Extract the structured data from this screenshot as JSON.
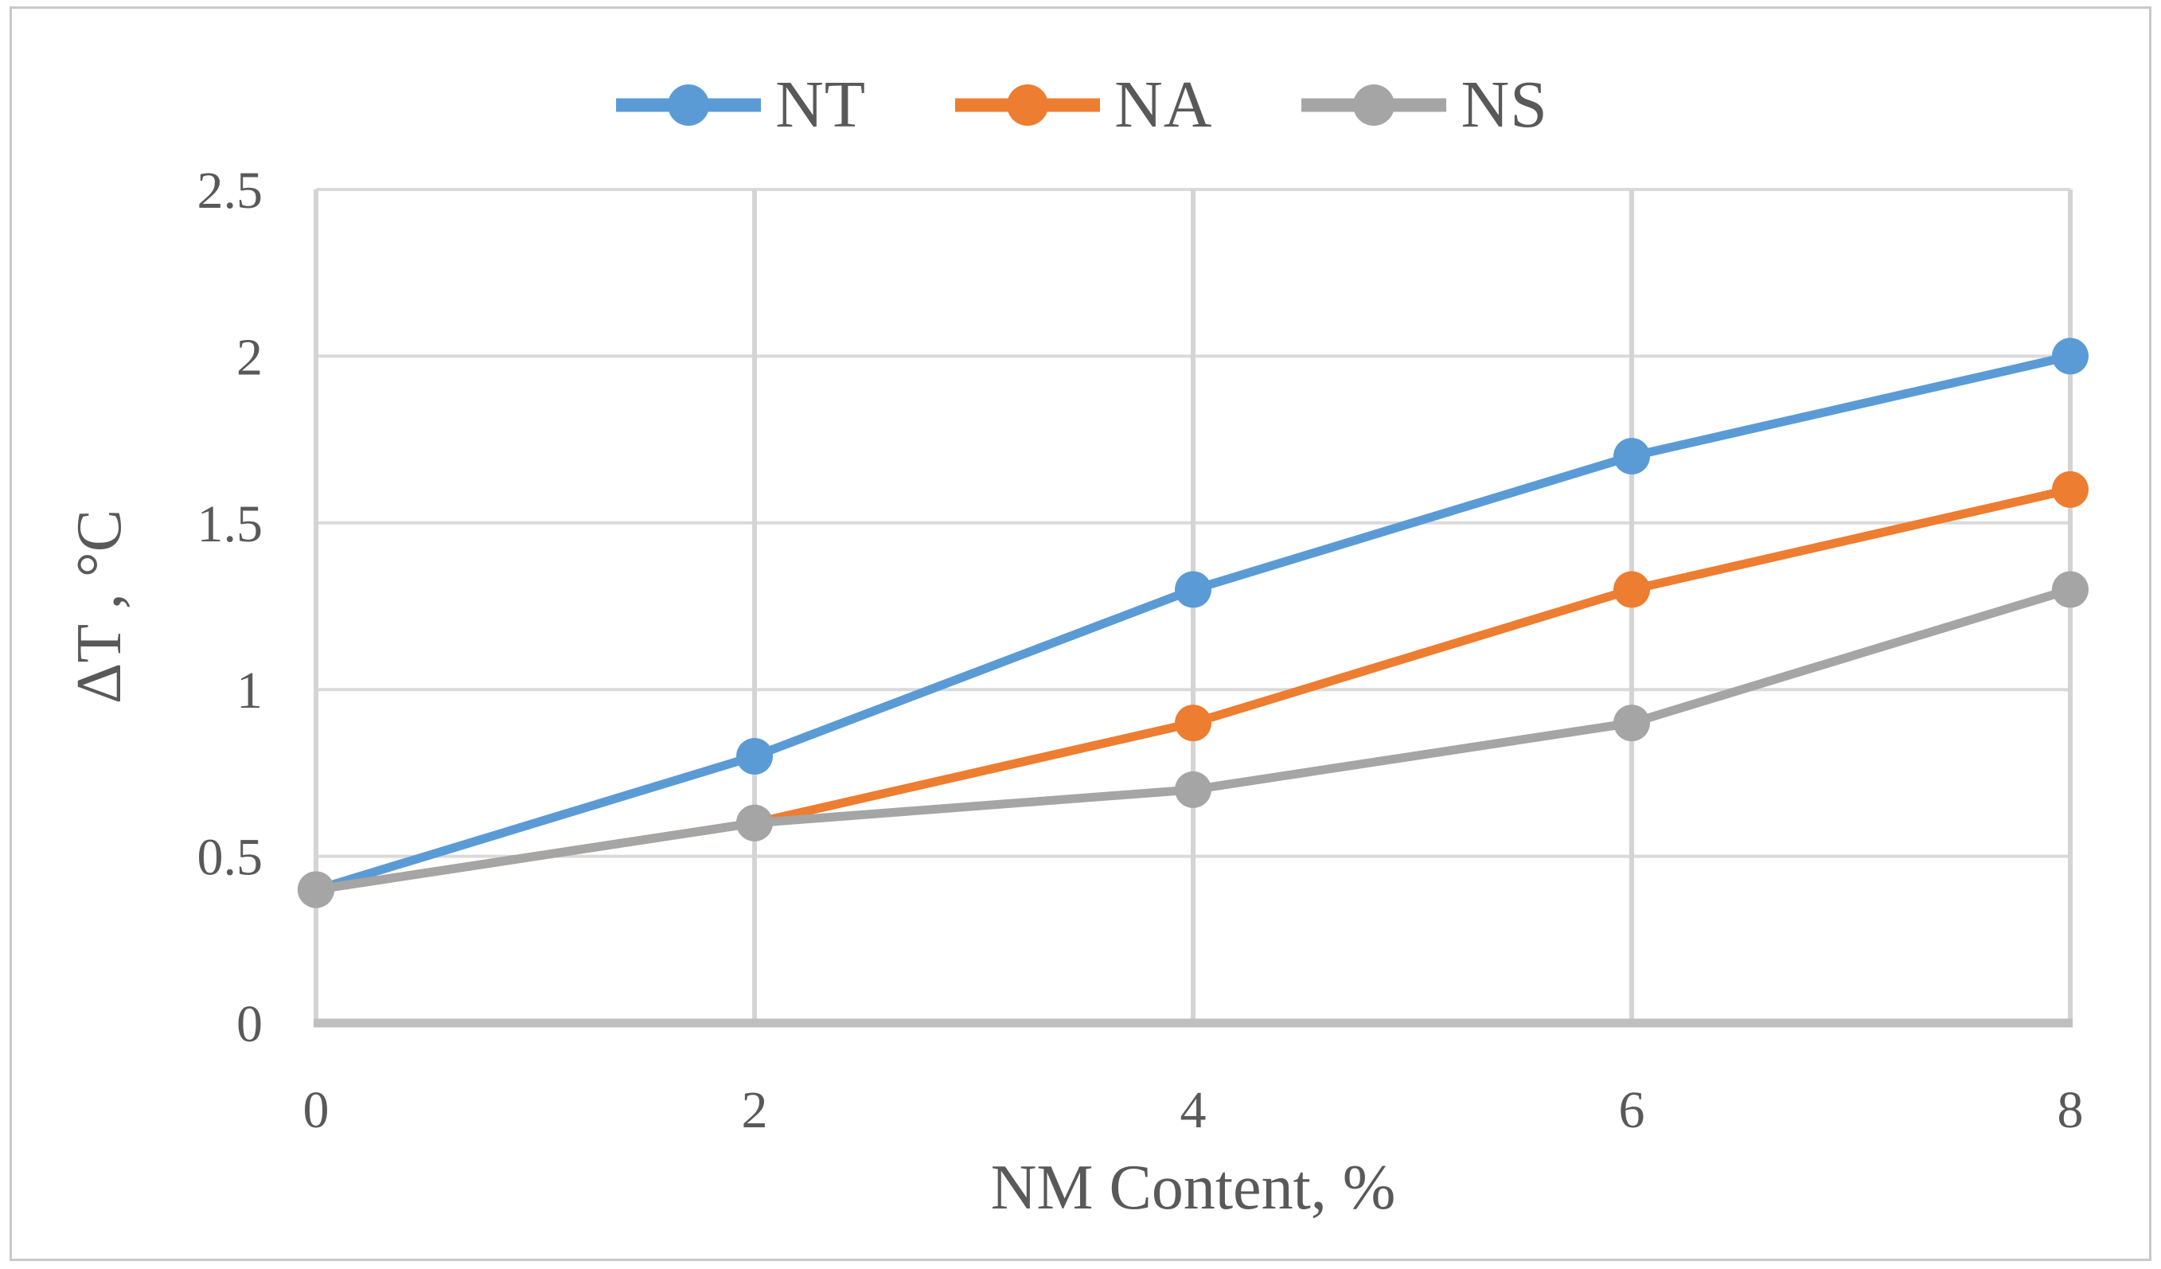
{
  "chart_data": {
    "type": "line",
    "x": [
      0,
      2,
      4,
      6,
      8
    ],
    "series": [
      {
        "name": "NT",
        "color": "#5B9BD5",
        "values": [
          0.4,
          0.8,
          1.3,
          1.7,
          2.0
        ]
      },
      {
        "name": "NA",
        "color": "#ED7D31",
        "values": [
          0.4,
          0.6,
          0.9,
          1.3,
          1.6
        ]
      },
      {
        "name": "NS",
        "color": "#A5A5A5",
        "values": [
          0.4,
          0.6,
          0.7,
          0.9,
          1.3
        ]
      }
    ],
    "xlabel": "NM Content, %",
    "ylabel": "ΔT , °C",
    "xlim": [
      0,
      8
    ],
    "ylim": [
      0,
      2.5
    ],
    "x_ticks": [
      "0",
      "2",
      "4",
      "6",
      "8"
    ],
    "y_ticks": [
      "0",
      "0.5",
      "1",
      "1.5",
      "2",
      "2.5"
    ],
    "grid": true,
    "legend_position": "top-center",
    "marker": "circle"
  },
  "colors": {
    "grid_horizontal": "#DADADA",
    "grid_vertical": "#D4D4D4",
    "axis_line": "#BFBFBF",
    "text": "#595959",
    "frame_border": "#C9C9C9",
    "background": "#FFFFFF"
  }
}
